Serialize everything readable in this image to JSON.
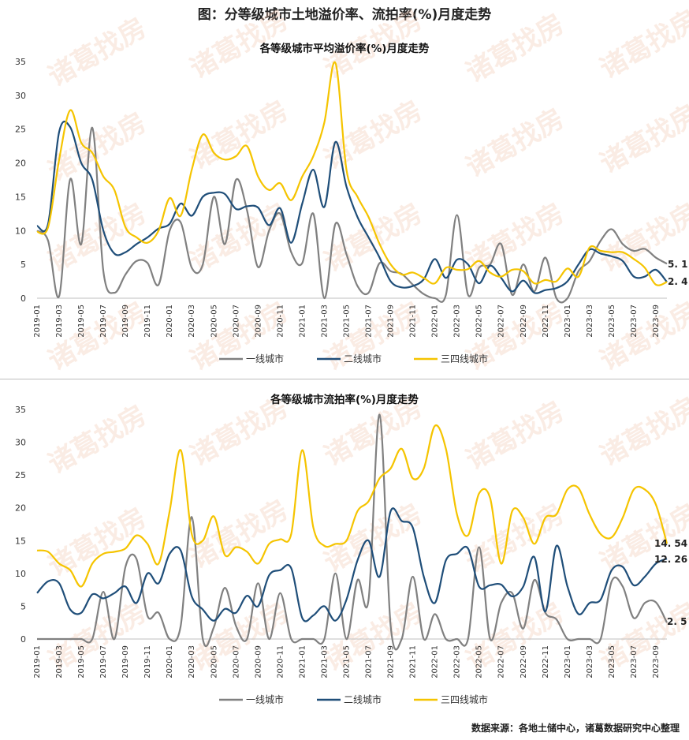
{
  "page": {
    "title": "图：分等级城市土地溢价率、流拍率(%)月度走势",
    "source": "数据来源：各地土储中心，诸葛数据研究中心整理",
    "watermark": "诸葛找房"
  },
  "colors": {
    "tier1": "#808080",
    "tier2": "#1f4e79",
    "tier34": "#f5c400"
  },
  "chart_data": [
    {
      "type": "line",
      "title": "各等级城市平均溢价率(%)月度走势",
      "ylim": [
        0,
        35
      ],
      "yticks": [
        0,
        5,
        10,
        15,
        20,
        25,
        30,
        35
      ],
      "x": [
        "2019-01",
        "2019-02",
        "2019-03",
        "2019-04",
        "2019-05",
        "2019-06",
        "2019-07",
        "2019-08",
        "2019-09",
        "2019-10",
        "2019-11",
        "2019-12",
        "2020-01",
        "2020-02",
        "2020-03",
        "2020-04",
        "2020-05",
        "2020-06",
        "2020-07",
        "2020-08",
        "2020-09",
        "2020-10",
        "2020-11",
        "2020-12",
        "2021-01",
        "2021-02",
        "2021-03",
        "2021-04",
        "2021-05",
        "2021-06",
        "2021-07",
        "2021-08",
        "2021-09",
        "2021-10",
        "2021-11",
        "2021-12",
        "2022-01",
        "2022-02",
        "2022-03",
        "2022-04",
        "2022-05",
        "2022-06",
        "2022-07",
        "2022-08",
        "2022-09",
        "2022-10",
        "2022-11",
        "2022-12",
        "2023-01",
        "2023-02",
        "2023-03",
        "2023-04",
        "2023-05",
        "2023-06",
        "2023-07",
        "2023-08",
        "2023-09",
        "2023-10"
      ],
      "xticks": [
        "2019-01",
        "2019-03",
        "2019-05",
        "2019-07",
        "2019-09",
        "2019-11",
        "2020-01",
        "2020-03",
        "2020-05",
        "2020-07",
        "2020-09",
        "2020-11",
        "2021-01",
        "2021-03",
        "2021-05",
        "2021-07",
        "2021-09",
        "2021-11",
        "2022-01",
        "2022-03",
        "2022-05",
        "2022-07",
        "2022-09",
        "2022-11",
        "2023-01",
        "2023-03",
        "2023-05",
        "2023-07",
        "2023-09"
      ],
      "series": [
        {
          "name": "一线城市",
          "values": [
            10,
            8.5,
            0.3,
            17.6,
            8.0,
            25.2,
            4.0,
            0.8,
            3.5,
            5.5,
            5.2,
            2.0,
            10.0,
            11.2,
            4.5,
            5.0,
            15.0,
            8.0,
            17.5,
            13.0,
            4.6,
            10.0,
            12.5,
            6.8,
            5.2,
            12.5,
            0,
            11.0,
            6.5,
            1.8,
            0.8,
            5.2,
            4.0,
            3.6,
            2.0,
            0.6,
            0,
            0.5,
            12.3,
            0.5,
            4.5,
            5.0,
            8.0,
            0.5,
            5.0,
            1.0,
            6.0,
            0,
            0,
            4.0,
            5.5,
            8.5,
            10.2,
            8.0,
            7.0,
            7.3,
            6.0,
            5.1
          ]
        },
        {
          "name": "二线城市",
          "values": [
            10.7,
            11.0,
            24.6,
            25.3,
            20.0,
            17.5,
            10.0,
            6.6,
            6.8,
            8.0,
            9.0,
            10.3,
            11.0,
            14.0,
            12.2,
            15.0,
            15.6,
            15.4,
            13.2,
            13.6,
            13.4,
            10.8,
            13.3,
            8.2,
            14.0,
            19.0,
            13.5,
            23.1,
            16.5,
            12.0,
            9.0,
            6.0,
            2.5,
            1.6,
            1.8,
            2.8,
            5.8,
            3.0,
            5.7,
            5.0,
            2.2,
            4.8,
            3.0,
            1.0,
            2.6,
            0.8,
            1.2,
            1.5,
            2.5,
            5.0,
            7.2,
            6.6,
            6.2,
            5.5,
            3.2,
            3.2,
            4.2,
            2.4
          ]
        },
        {
          "name": "三四线城市",
          "values": [
            9.8,
            10.5,
            20.5,
            27.8,
            23.0,
            21.5,
            18.0,
            16.0,
            10.5,
            9.0,
            8.2,
            10.0,
            14.8,
            12.2,
            19.0,
            24.2,
            21.5,
            20.5,
            21.0,
            22.5,
            18.0,
            16.0,
            17.0,
            14.5,
            18.0,
            21.0,
            26.0,
            34.8,
            19.0,
            15.0,
            12.0,
            8.0,
            5.0,
            3.5,
            3.8,
            3.0,
            2.2,
            4.5,
            4.2,
            4.3,
            5.5,
            3.8,
            3.2,
            4.2,
            4.0,
            2.2,
            2.7,
            2.5,
            4.4,
            3.2,
            7.5,
            7.0,
            6.8,
            6.8,
            5.8,
            4.5,
            2.0,
            2.4
          ]
        }
      ],
      "end_labels": [
        "5. 1",
        "2. 4"
      ],
      "legend": [
        "一线城市",
        "二线城市",
        "三四线城市"
      ]
    },
    {
      "type": "line",
      "title": "各等级城市流拍率(%)月度走势",
      "ylim": [
        0,
        35
      ],
      "yticks": [
        0,
        5,
        10,
        15,
        20,
        25,
        30,
        35
      ],
      "x": [
        "2019-01",
        "2019-02",
        "2019-03",
        "2019-04",
        "2019-05",
        "2019-06",
        "2019-07",
        "2019-08",
        "2019-09",
        "2019-10",
        "2019-11",
        "2019-12",
        "2020-01",
        "2020-02",
        "2020-03",
        "2020-04",
        "2020-05",
        "2020-06",
        "2020-07",
        "2020-08",
        "2020-09",
        "2020-10",
        "2020-11",
        "2020-12",
        "2021-01",
        "2021-02",
        "2021-03",
        "2021-04",
        "2021-05",
        "2021-06",
        "2021-07",
        "2021-08",
        "2021-09",
        "2021-10",
        "2021-11",
        "2021-12",
        "2022-01",
        "2022-02",
        "2022-03",
        "2022-04",
        "2022-05",
        "2022-06",
        "2022-07",
        "2022-08",
        "2022-09",
        "2022-10",
        "2022-11",
        "2022-12",
        "2023-01",
        "2023-02",
        "2023-03",
        "2023-04",
        "2023-05",
        "2023-06",
        "2023-07",
        "2023-08",
        "2023-09",
        "2023-10"
      ],
      "xticks": [
        "2019-01",
        "2019-03",
        "2019-05",
        "2019-07",
        "2019-09",
        "2019-11",
        "2020-01",
        "2020-03",
        "2020-05",
        "2020-07",
        "2020-09",
        "2020-11",
        "2021-01",
        "2021-03",
        "2021-05",
        "2021-07",
        "2021-09",
        "2021-11",
        "2022-01",
        "2022-03",
        "2022-05",
        "2022-07",
        "2022-09",
        "2022-11",
        "2023-01",
        "2023-03",
        "2023-05",
        "2023-07",
        "2023-09"
      ],
      "series": [
        {
          "name": "一线城市",
          "values": [
            0,
            0,
            0,
            0,
            0,
            0,
            7.2,
            0,
            11.0,
            12.2,
            3.5,
            4.0,
            0,
            2.0,
            18.6,
            0,
            1.8,
            7.8,
            2.0,
            0,
            8.5,
            0,
            7.0,
            0,
            0,
            0,
            0,
            10.0,
            0,
            9.0,
            6.0,
            34.2,
            2.0,
            0,
            9.5,
            0,
            3.8,
            0,
            0,
            0,
            14.0,
            0,
            5.5,
            7.0,
            1.6,
            9.0,
            4.0,
            3.0,
            0,
            0,
            0,
            0,
            8.8,
            8.0,
            3.2,
            5.5,
            5.6,
            2.5
          ]
        },
        {
          "name": "二线城市",
          "values": [
            7.0,
            8.8,
            8.5,
            4.5,
            4.0,
            6.8,
            6.2,
            7.0,
            8.0,
            5.5,
            10.0,
            8.5,
            13.0,
            13.5,
            6.5,
            4.5,
            2.8,
            4.6,
            4.0,
            6.6,
            5.0,
            9.7,
            10.5,
            10.8,
            3.2,
            3.6,
            5.0,
            2.8,
            6.0,
            12.0,
            15.0,
            9.5,
            19.5,
            18.0,
            17.0,
            9.5,
            5.5,
            12.0,
            13.0,
            13.8,
            8.0,
            8.2,
            8.3,
            6.5,
            8.0,
            12.5,
            4.2,
            14.2,
            8.0,
            3.8,
            5.5,
            6.0,
            10.5,
            11.0,
            8.2,
            9.5,
            11.5,
            12.26
          ]
        },
        {
          "name": "三四线城市",
          "values": [
            13.5,
            13.3,
            11.5,
            10.5,
            8.0,
            11.5,
            13.0,
            13.3,
            13.8,
            15.8,
            14.5,
            11.5,
            19.5,
            28.8,
            16.0,
            15.0,
            18.7,
            12.8,
            14.0,
            13.3,
            11.5,
            14.5,
            15.2,
            16.0,
            28.8,
            17.0,
            14.2,
            14.5,
            15.0,
            19.5,
            21.0,
            24.5,
            26.0,
            29.0,
            24.5,
            26.0,
            32.5,
            29.0,
            19.0,
            15.8,
            22.2,
            21.5,
            11.5,
            19.5,
            18.5,
            14.5,
            18.5,
            19.0,
            22.8,
            23.0,
            19.0,
            16.0,
            15.5,
            18.5,
            22.8,
            22.8,
            20.5,
            14.54
          ]
        }
      ],
      "end_labels": [
        "14. 54",
        "12. 26",
        "2. 5"
      ],
      "legend": [
        "一线城市",
        "二线城市",
        "三四线城市"
      ]
    }
  ]
}
